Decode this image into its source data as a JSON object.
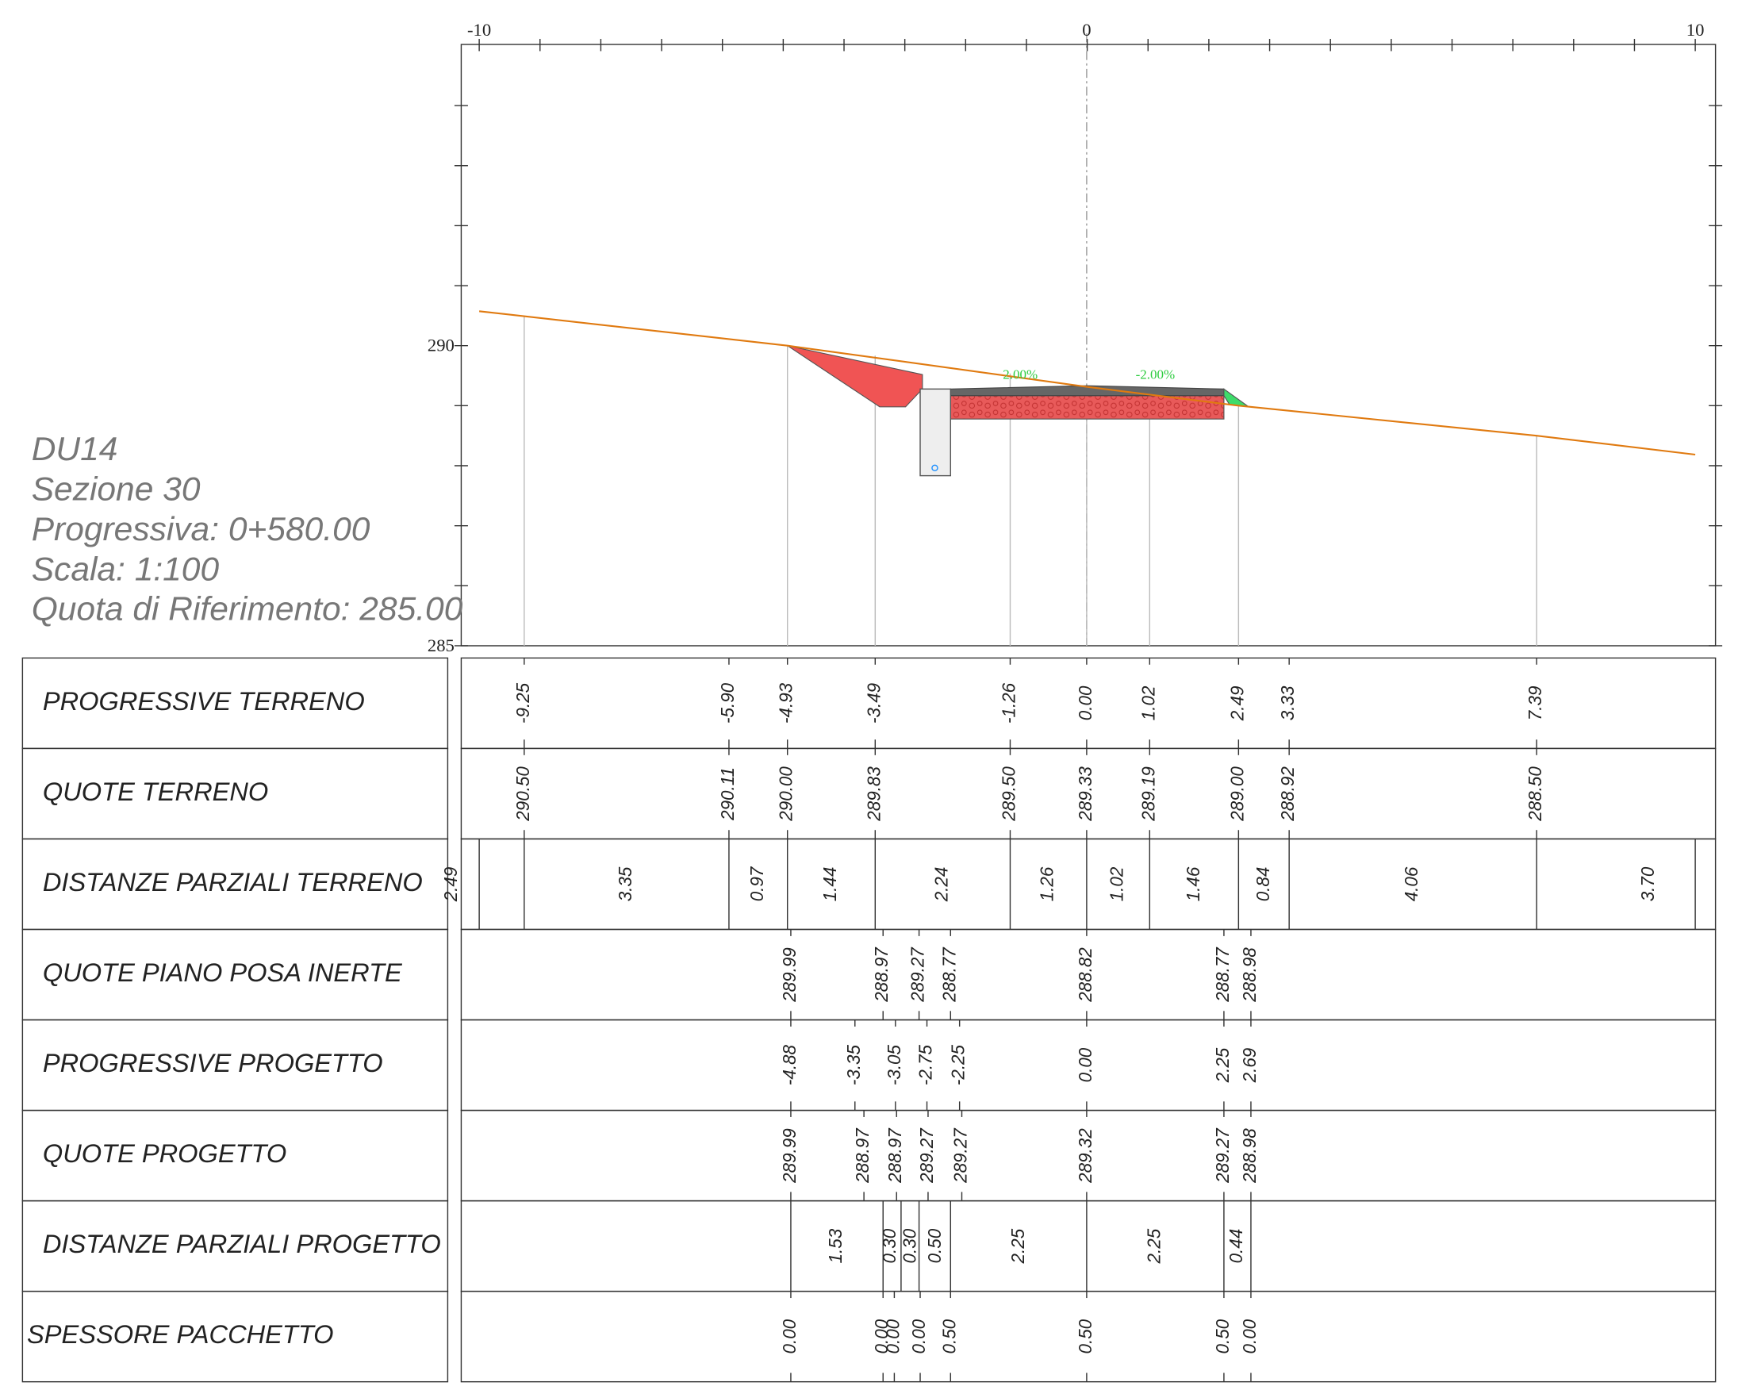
{
  "info": [
    "DU14",
    "Sezione 30",
    "Progressiva: 0+580.00",
    "Scala: 1:100",
    "Quota di Riferimento: 285.00"
  ],
  "axis": {
    "x_labels": [
      "-10",
      "0",
      "10"
    ],
    "y_labels": [
      "290",
      "285"
    ]
  },
  "slopes": [
    "2.00%",
    "-2.00%"
  ],
  "table": {
    "rows": [
      {
        "label": "PROGRESSIVE TERRENO",
        "values": [
          "-9.25",
          "-5.90",
          "-4.93",
          "-3.49",
          "-1.26",
          "0.00",
          "1.02",
          "2.49",
          "3.33",
          "7.39"
        ]
      },
      {
        "label": "QUOTE TERRENO",
        "values": [
          "290.50",
          "290.11",
          "290.00",
          "289.83",
          "289.50",
          "289.33",
          "289.19",
          "289.00",
          "288.92",
          "288.50"
        ]
      },
      {
        "label": "DISTANZE PARZIALI TERRENO",
        "values": [
          "2.49",
          "3.35",
          "0.97",
          "1.44",
          "2.24",
          "1.26",
          "1.02",
          "1.46",
          "0.84",
          "4.06",
          "3.70"
        ]
      },
      {
        "label": "QUOTE PIANO POSA INERTE",
        "values": [
          "289.99",
          "288.97",
          "289.27",
          "288.77",
          "288.82",
          "288.77",
          "288.98"
        ]
      },
      {
        "label": "PROGRESSIVE PROGETTO",
        "values": [
          "-4.88",
          "-3.35",
          "-3.05",
          "-2.75",
          "-2.25",
          "0.00",
          "2.25",
          "2.69"
        ]
      },
      {
        "label": "QUOTE PROGETTO",
        "values": [
          "289.99",
          "288.97",
          "288.97",
          "289.27",
          "289.27",
          "289.32",
          "289.27",
          "288.98"
        ]
      },
      {
        "label": "DISTANZE PARZIALI PROGETTO",
        "values": [
          "1.53",
          "0.30",
          "0.30",
          "0.50",
          "2.25",
          "2.25",
          "0.44"
        ]
      },
      {
        "label": "SPESSORE PACCHETTO",
        "values": [
          "0.00",
          "0.00",
          "0.00",
          "0.00",
          "0.50",
          "0.50",
          "0.50",
          "0.00"
        ]
      }
    ]
  }
}
